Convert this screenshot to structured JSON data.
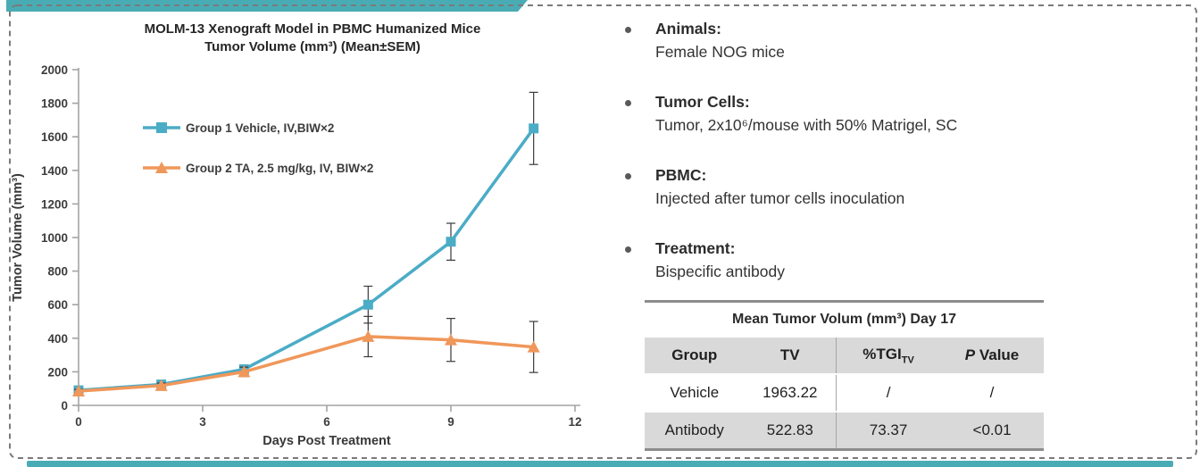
{
  "colors": {
    "accent_teal": "#49ACB4",
    "table_gray": "#D9D9D9",
    "series_blue": "#4BACC6",
    "series_orange": "#F0975A"
  },
  "slide": {
    "bullets": [
      {
        "heading": "Animals:",
        "body": "Female NOG mice"
      },
      {
        "heading": "Tumor Cells:",
        "body": "Tumor, 2x10⁶/mouse with 50% Matrigel, SC"
      },
      {
        "heading": "PBMC:",
        "body": "Injected after tumor cells inoculation"
      },
      {
        "heading": "Treatment:",
        "body": "Bispecific antibody"
      }
    ],
    "table": {
      "title": "Mean Tumor Volum (mm³) Day 17",
      "headers": {
        "col1": "Group",
        "col2": "TV",
        "col3_main": "%TGI",
        "col3_sub": "TV",
        "col4_italic": "P",
        "col4_rest": " Value"
      },
      "rows": [
        {
          "group": "Vehicle",
          "tv": "1963.22",
          "tgi": "/",
          "p": "/"
        },
        {
          "group": "Antibody",
          "tv": "522.83",
          "tgi": "73.37",
          "p": "<0.01"
        }
      ]
    }
  },
  "chart_data": {
    "type": "line",
    "title_line1": "MOLM-13 Xenograft Model in PBMC Humanized Mice",
    "title_line2": "Tumor Volume (mm³) (Mean±SEM)",
    "xlabel": "Days Post Treatment",
    "ylabel": "Tumor Volume (mm³)",
    "x": [
      0,
      2,
      4,
      7,
      9,
      11
    ],
    "xticks": [
      0,
      3,
      6,
      9,
      12
    ],
    "xlim": [
      0,
      12
    ],
    "ylim": [
      0,
      2000
    ],
    "ytick_step": 200,
    "grid": false,
    "legend_position": "upper-left-inside",
    "series": [
      {
        "name": "Group 1 Vehicle, IV,BIW×2",
        "color": "#4BACC6",
        "marker": "square",
        "values": [
          90,
          125,
          215,
          600,
          975,
          1650
        ],
        "sem": [
          12,
          18,
          25,
          110,
          110,
          215
        ]
      },
      {
        "name": "Group 2 TA, 2.5 mg/kg, IV, BIW×2",
        "color": "#F0975A",
        "marker": "triangle",
        "values": [
          85,
          118,
          200,
          410,
          390,
          348
        ],
        "sem": [
          10,
          15,
          28,
          120,
          128,
          152
        ]
      }
    ]
  }
}
